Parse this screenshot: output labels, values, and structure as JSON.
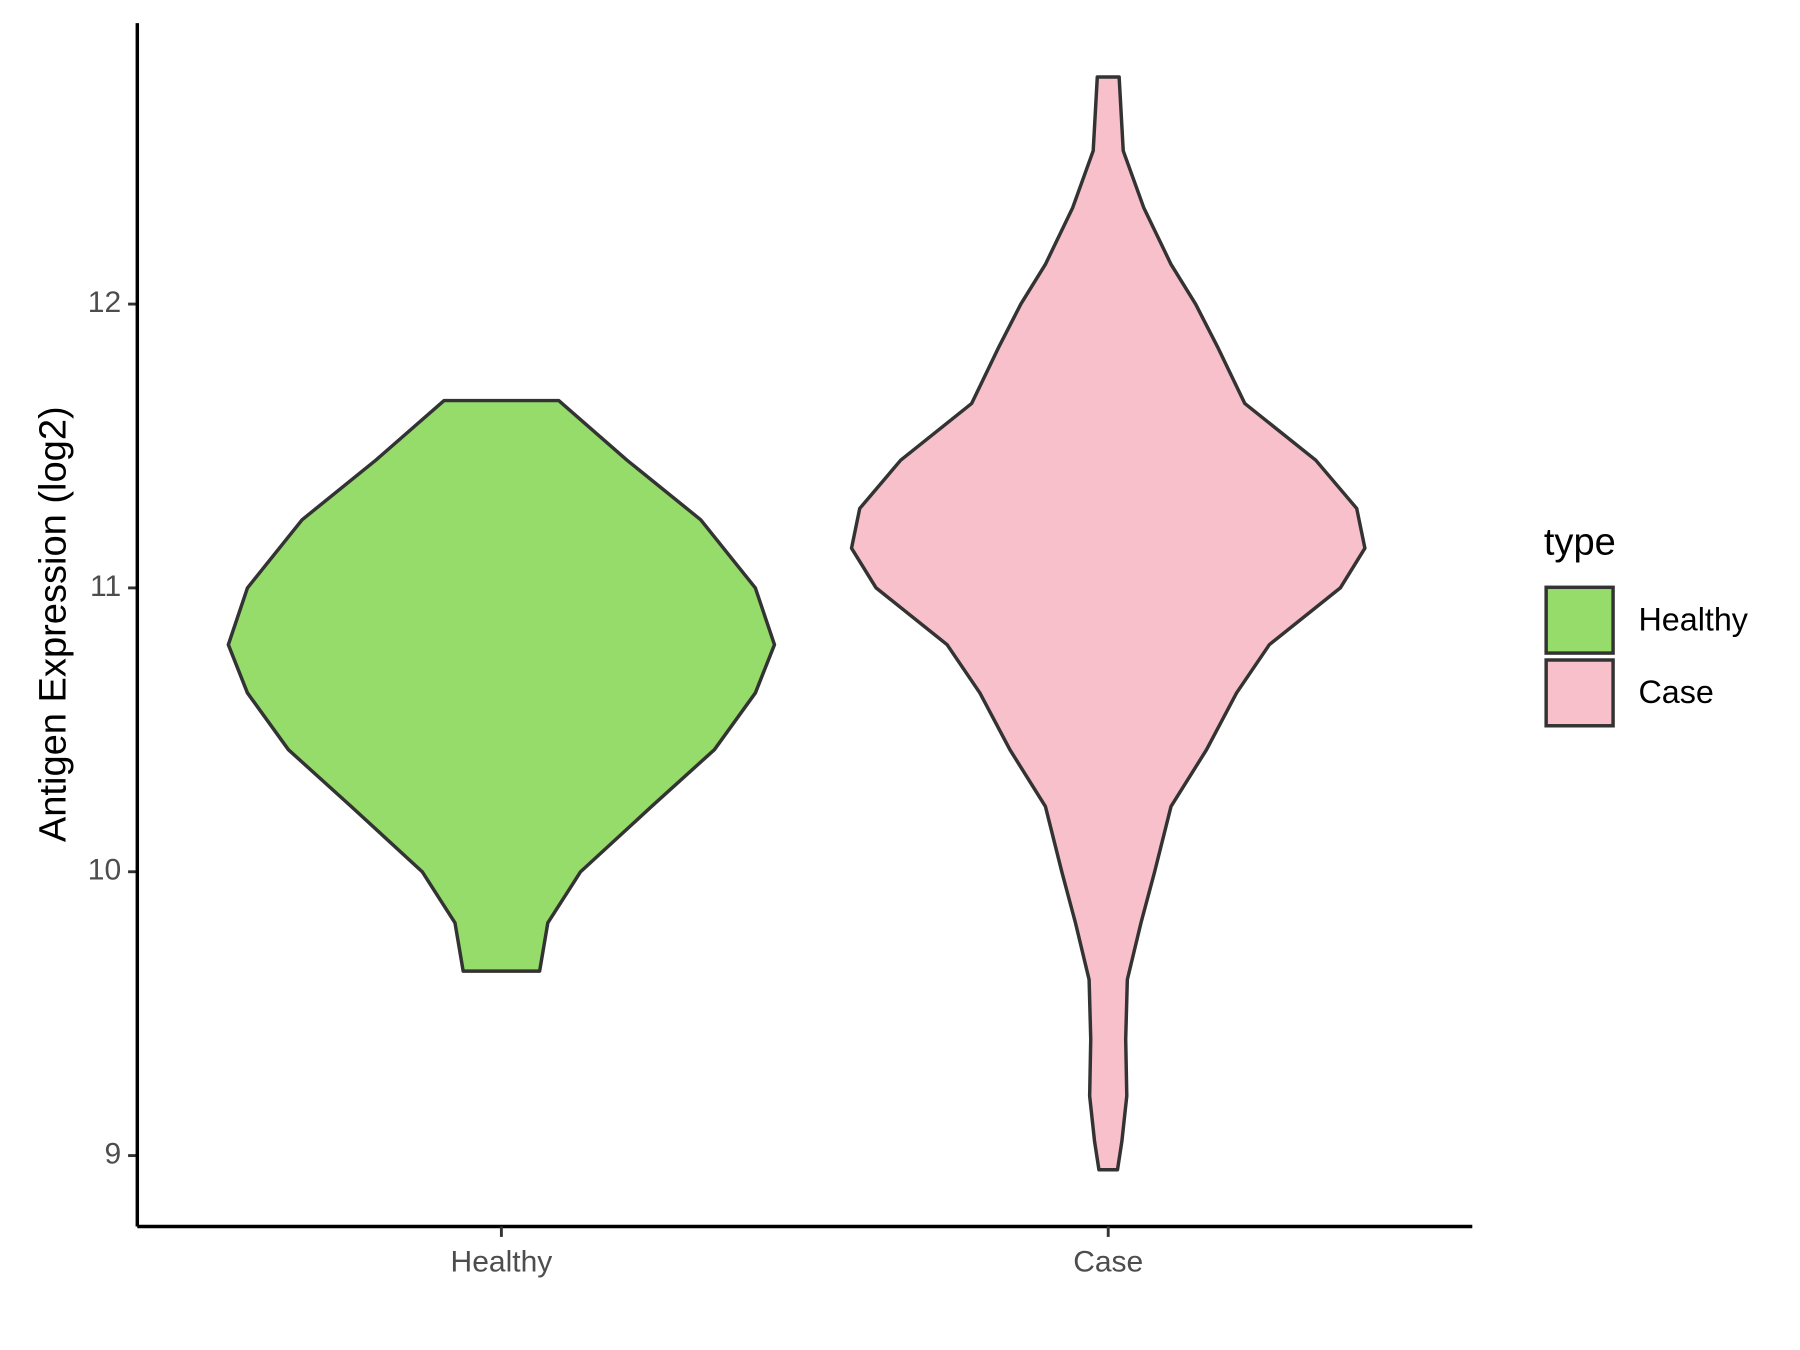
{
  "chart_data": {
    "type": "violin",
    "y_label": "Antigen Expression (log2)",
    "categories": [
      "Healthy",
      "Case"
    ],
    "legend_title": "type",
    "legend_position": "right",
    "series": [
      {
        "name": "Healthy",
        "color": "#95dc6b",
        "values": [
          11.66,
          11.45,
          11.24,
          11.0,
          10.8,
          10.63,
          10.43,
          10.23,
          10.0,
          9.82,
          9.65
        ],
        "density": [
          0.21,
          0.46,
          0.73,
          0.93,
          1.0,
          0.93,
          0.78,
          0.55,
          0.29,
          0.17,
          0.14
        ]
      },
      {
        "name": "Case",
        "color": "#f7c0cb",
        "values": [
          12.8,
          12.54,
          12.34,
          12.14,
          12.0,
          11.85,
          11.65,
          11.45,
          11.28,
          11.14,
          11.0,
          10.8,
          10.63,
          10.43,
          10.23,
          10.0,
          9.82,
          9.62,
          9.41,
          9.21,
          9.05,
          8.95
        ],
        "density": [
          0.04,
          0.055,
          0.13,
          0.23,
          0.32,
          0.4,
          0.5,
          0.76,
          0.91,
          0.94,
          0.85,
          0.59,
          0.47,
          0.36,
          0.23,
          0.17,
          0.12,
          0.07,
          0.064,
          0.068,
          0.05,
          0.034
        ]
      }
    ],
    "ylim": [
      8.75,
      12.99
    ],
    "yticks": [
      9,
      10,
      11,
      12
    ],
    "grid": false
  }
}
